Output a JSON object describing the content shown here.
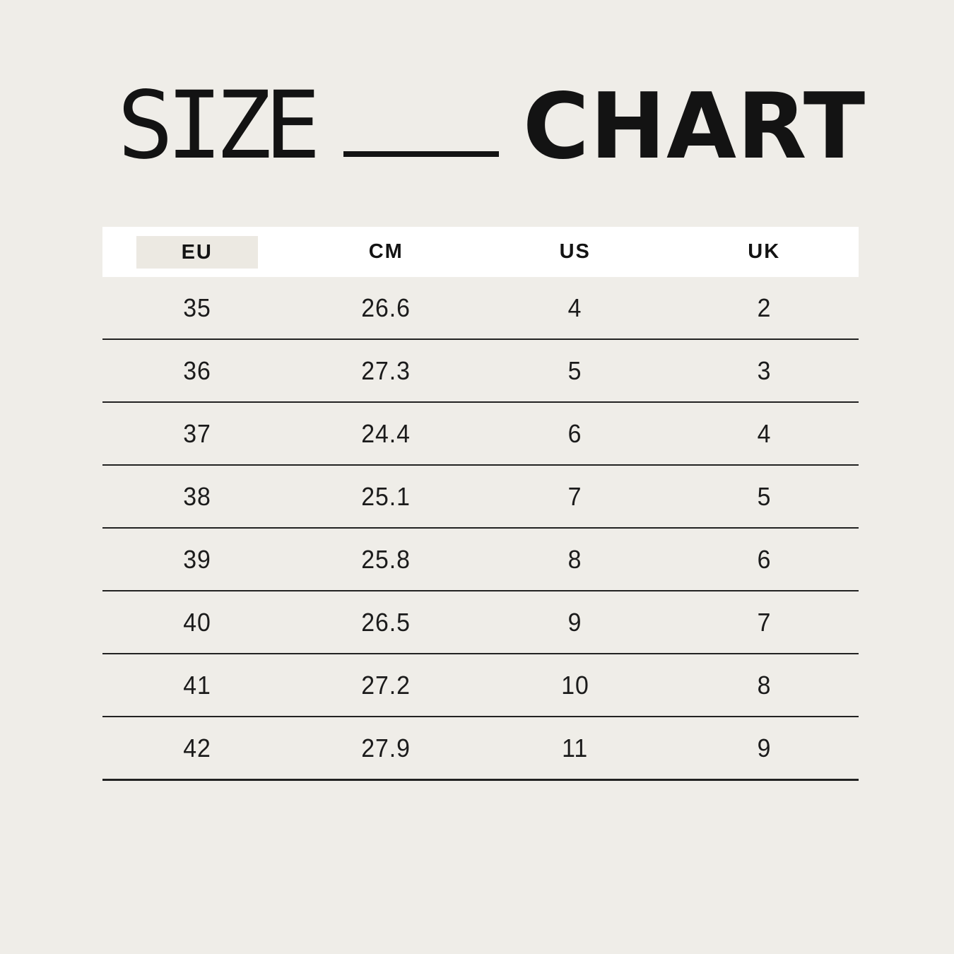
{
  "title": {
    "left_word": "SIZE",
    "right_word": "CHART"
  },
  "chart_data": {
    "type": "table",
    "title": "SIZE CHART",
    "columns": [
      "EU",
      "CM",
      "US",
      "UK"
    ],
    "highlighted_column": "EU",
    "rows": [
      [
        "35",
        "26.6",
        "4",
        "2"
      ],
      [
        "36",
        "27.3",
        "5",
        "3"
      ],
      [
        "37",
        "24.4",
        "6",
        "4"
      ],
      [
        "38",
        "25.1",
        "7",
        "5"
      ],
      [
        "39",
        "25.8",
        "8",
        "6"
      ],
      [
        "40",
        "26.5",
        "9",
        "7"
      ],
      [
        "41",
        "27.2",
        "10",
        "8"
      ],
      [
        "42",
        "27.9",
        "11",
        "9"
      ]
    ],
    "layout": {
      "grid": "horizontal row separators only",
      "header_background": "#ffffff",
      "highlight_background": "#ece9e2"
    }
  },
  "colors": {
    "page_background": "#efede8",
    "header_band": "#ffffff",
    "eu_highlight": "#ece9e2",
    "text": "#161616",
    "separator_line": "#222222"
  }
}
